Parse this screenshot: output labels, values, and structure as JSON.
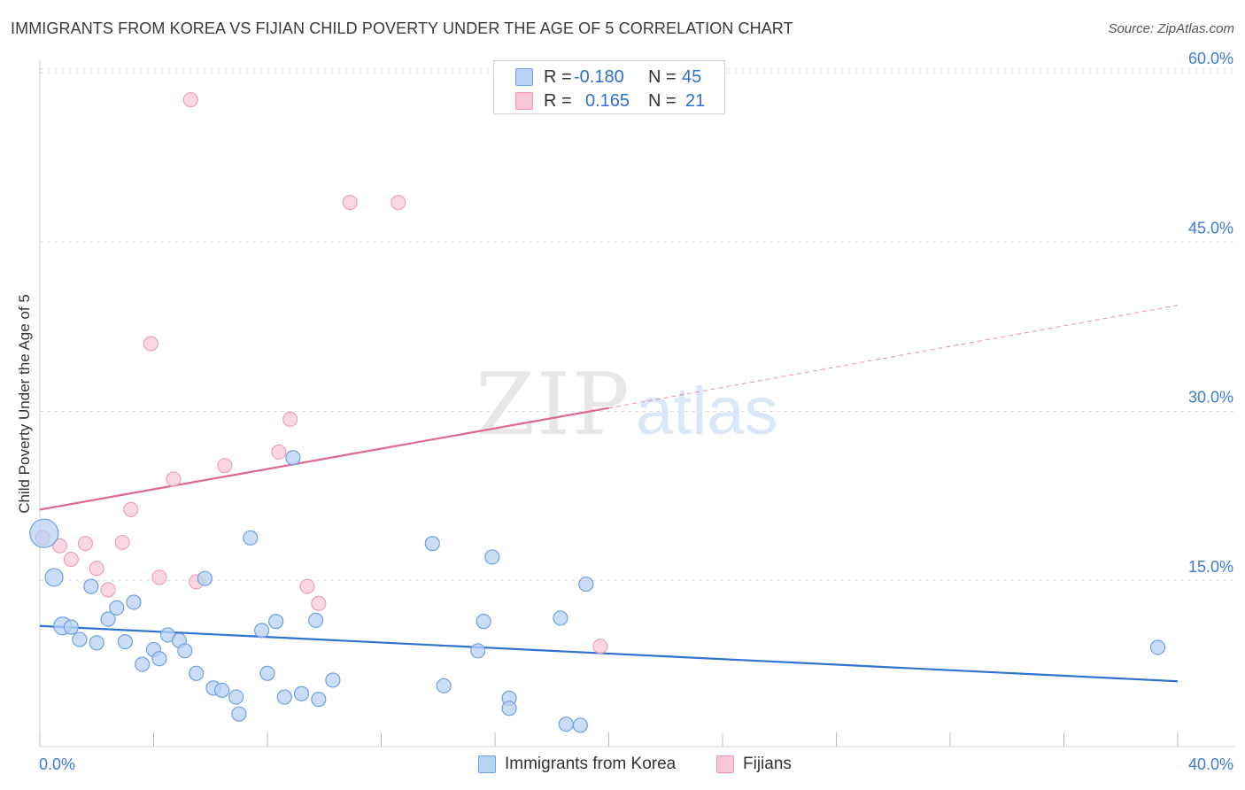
{
  "header": {
    "title": "IMMIGRANTS FROM KOREA VS FIJIAN CHILD POVERTY UNDER THE AGE OF 5 CORRELATION CHART",
    "source": "Source: ZipAtlas.com"
  },
  "watermark": {
    "zip": "ZIP",
    "atlas": "atlas"
  },
  "colors": {
    "korea_fill": "#b7d2f3",
    "korea_stroke": "#6fa0e2",
    "korea_line": "#2f72d0",
    "fiji_fill": "#f9c6d6",
    "fiji_stroke": "#ec94b0",
    "fiji_line": "#e06790",
    "axis_text": "#3d7bd6",
    "grid": "#dcdcdc"
  },
  "legend": {
    "rows": [
      {
        "r_label": "R =",
        "r_value": "-0.180",
        "n_label": "N =",
        "n_value": "45"
      },
      {
        "r_label": "R =",
        "r_value": "0.165",
        "n_label": "N =",
        "n_value": "21"
      }
    ]
  },
  "bottom_legend": {
    "items": [
      {
        "label": "Immigrants from Korea"
      },
      {
        "label": "Fijians"
      }
    ]
  },
  "chart_data": {
    "type": "scatter",
    "title": "IMMIGRANTS FROM KOREA VS FIJIAN CHILD POVERTY UNDER THE AGE OF 5 CORRELATION CHART",
    "xlabel": "",
    "ylabel": "Child Poverty Under the Age of 5",
    "xlim": [
      0,
      40
    ],
    "ylim": [
      0,
      60
    ],
    "x_tick_labels": [
      "0.0%",
      "40.0%"
    ],
    "y_ticks": [
      15,
      30,
      45,
      60
    ],
    "y_tick_labels": [
      "15.0%",
      "30.0%",
      "45.0%",
      "60.0%"
    ],
    "grid": true,
    "series": [
      {
        "name": "Immigrants from Korea",
        "R": -0.18,
        "N": 45,
        "trend": {
          "x": [
            0,
            40
          ],
          "y": [
            11.0,
            6.1
          ]
        },
        "points": [
          {
            "x": 0.15,
            "y": 19.2,
            "big": true
          },
          {
            "x": 0.5,
            "y": 15.3
          },
          {
            "x": 0.8,
            "y": 11.0
          },
          {
            "x": 1.1,
            "y": 10.9
          },
          {
            "x": 1.4,
            "y": 9.8
          },
          {
            "x": 1.8,
            "y": 14.5
          },
          {
            "x": 2.0,
            "y": 9.5
          },
          {
            "x": 2.4,
            "y": 11.6
          },
          {
            "x": 2.7,
            "y": 12.6
          },
          {
            "x": 3.0,
            "y": 9.6
          },
          {
            "x": 3.3,
            "y": 13.1
          },
          {
            "x": 3.6,
            "y": 7.6
          },
          {
            "x": 4.0,
            "y": 8.9
          },
          {
            "x": 4.2,
            "y": 8.1
          },
          {
            "x": 4.5,
            "y": 10.2
          },
          {
            "x": 4.9,
            "y": 9.7
          },
          {
            "x": 5.1,
            "y": 8.8
          },
          {
            "x": 5.5,
            "y": 6.8
          },
          {
            "x": 5.8,
            "y": 15.2
          },
          {
            "x": 6.1,
            "y": 5.5
          },
          {
            "x": 6.4,
            "y": 5.3
          },
          {
            "x": 6.9,
            "y": 4.7
          },
          {
            "x": 7.0,
            "y": 3.2
          },
          {
            "x": 7.4,
            "y": 18.8
          },
          {
            "x": 7.8,
            "y": 10.6
          },
          {
            "x": 8.0,
            "y": 6.8
          },
          {
            "x": 8.3,
            "y": 11.4
          },
          {
            "x": 8.6,
            "y": 4.7
          },
          {
            "x": 8.9,
            "y": 25.9
          },
          {
            "x": 9.2,
            "y": 5.0
          },
          {
            "x": 9.7,
            "y": 11.5
          },
          {
            "x": 9.8,
            "y": 4.5
          },
          {
            "x": 10.3,
            "y": 6.2
          },
          {
            "x": 13.8,
            "y": 18.3
          },
          {
            "x": 14.2,
            "y": 5.7
          },
          {
            "x": 15.4,
            "y": 8.8
          },
          {
            "x": 15.6,
            "y": 11.4
          },
          {
            "x": 15.9,
            "y": 17.1
          },
          {
            "x": 16.5,
            "y": 4.6
          },
          {
            "x": 16.5,
            "y": 3.7
          },
          {
            "x": 18.3,
            "y": 11.7
          },
          {
            "x": 18.5,
            "y": 2.3
          },
          {
            "x": 19.0,
            "y": 2.2
          },
          {
            "x": 19.2,
            "y": 14.7
          },
          {
            "x": 39.3,
            "y": 9.1
          }
        ]
      },
      {
        "name": "Fijians",
        "R": 0.165,
        "N": 21,
        "trend": {
          "x": [
            0,
            20
          ],
          "y": [
            21.3,
            30.3
          ]
        },
        "trend_dashed": {
          "x": [
            20,
            40
          ],
          "y": [
            30.3,
            39.4
          ]
        },
        "points": [
          {
            "x": 0.1,
            "y": 18.8
          },
          {
            "x": 0.7,
            "y": 18.1
          },
          {
            "x": 1.1,
            "y": 16.9
          },
          {
            "x": 1.6,
            "y": 18.3
          },
          {
            "x": 2.0,
            "y": 16.1
          },
          {
            "x": 2.4,
            "y": 14.2
          },
          {
            "x": 2.9,
            "y": 18.4
          },
          {
            "x": 3.2,
            "y": 21.3
          },
          {
            "x": 3.9,
            "y": 36.0
          },
          {
            "x": 4.2,
            "y": 15.3
          },
          {
            "x": 4.7,
            "y": 24.0
          },
          {
            "x": 5.3,
            "y": 57.6
          },
          {
            "x": 5.5,
            "y": 14.9
          },
          {
            "x": 6.5,
            "y": 25.2
          },
          {
            "x": 8.4,
            "y": 26.4
          },
          {
            "x": 8.8,
            "y": 29.3
          },
          {
            "x": 9.4,
            "y": 14.5
          },
          {
            "x": 9.8,
            "y": 13.0
          },
          {
            "x": 10.9,
            "y": 48.5
          },
          {
            "x": 12.6,
            "y": 48.5
          },
          {
            "x": 19.7,
            "y": 9.2
          }
        ]
      }
    ]
  }
}
